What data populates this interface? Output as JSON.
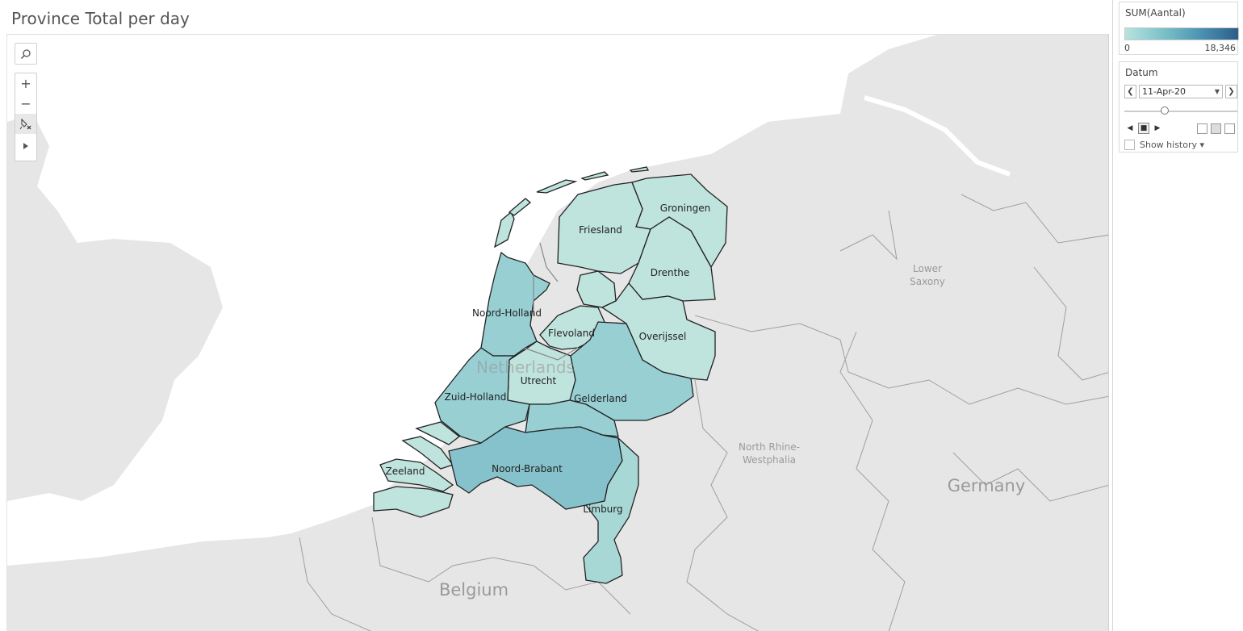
{
  "title": "Province Total per day",
  "map": {
    "toolbar": {
      "search_icon": "magnifier-icon",
      "zoom_in": "+",
      "zoom_out": "−",
      "reset_icon": "pin-reset-icon",
      "pan_icon": "play-arrow-icon"
    },
    "background_labels": {
      "netherlands": "Netherlands",
      "belgium": "Belgium",
      "germany": "Germany",
      "lower_saxony_1": "Lower",
      "lower_saxony_2": "Saxony",
      "nrw_1": "North Rhine-",
      "nrw_2": "Westphalia"
    },
    "provinces": [
      {
        "name": "Groningen"
      },
      {
        "name": "Friesland"
      },
      {
        "name": "Drenthe"
      },
      {
        "name": "Noord-Holland"
      },
      {
        "name": "Flevoland"
      },
      {
        "name": "Overijssel"
      },
      {
        "name": "Utrecht"
      },
      {
        "name": "Zuid-Holland"
      },
      {
        "name": "Gelderland"
      },
      {
        "name": "Zeeland"
      },
      {
        "name": "Noord-Brabant"
      },
      {
        "name": "Limburg"
      }
    ]
  },
  "legend": {
    "title": "SUM(Aantal)",
    "min": "0",
    "max": "18,346",
    "colors": [
      "#b7e3df",
      "#2b5e8a"
    ]
  },
  "filter": {
    "title": "Datum",
    "value": "11-Apr-20",
    "show_history": "Show history"
  },
  "colors": {
    "province_light": "#bfe3dd",
    "province_mid": "#97cfd3",
    "province_dark": "#86c2cb",
    "land": "#e4e4e4",
    "sea": "#ffffff"
  }
}
